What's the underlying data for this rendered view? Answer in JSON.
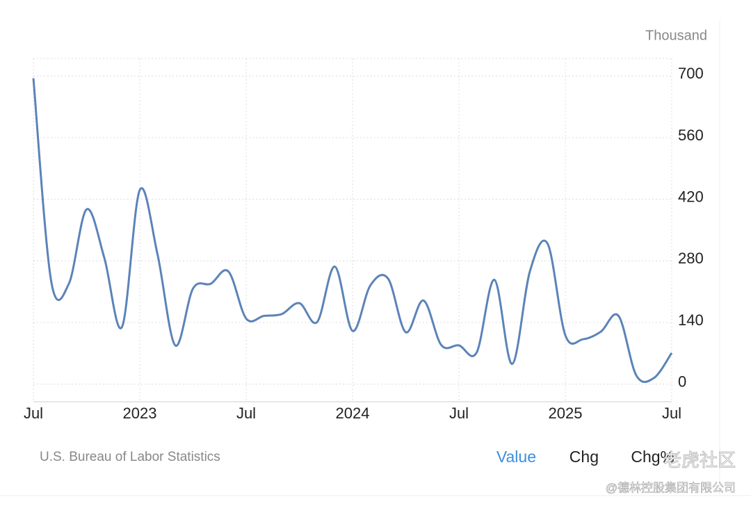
{
  "chart_data": {
    "type": "line",
    "unit": "Thousand",
    "categories": [
      "Jul",
      null,
      null,
      null,
      null,
      null,
      "2023",
      null,
      null,
      null,
      null,
      null,
      "Jul",
      null,
      null,
      null,
      null,
      null,
      "2024",
      null,
      null,
      null,
      null,
      null,
      "Jul",
      null,
      null,
      null,
      null,
      null,
      "2025",
      null,
      null,
      null,
      null,
      null,
      "Jul"
    ],
    "series": [
      {
        "name": "Value",
        "color": "#5b83b8",
        "values": [
          695,
          235,
          228,
          397,
          287,
          130,
          441,
          295,
          88,
          217,
          228,
          256,
          149,
          155,
          159,
          184,
          141,
          267,
          121,
          224,
          240,
          118,
          190,
          89,
          88,
          72,
          237,
          46,
          256,
          319,
          111,
          102,
          119,
          155,
          20,
          14,
          71
        ]
      }
    ],
    "ylim": [
      -40,
      740
    ],
    "yticks": [
      0,
      140,
      280,
      420,
      560,
      700
    ],
    "grid": true
  },
  "footer": {
    "source": "U.S. Bureau of Labor Statistics",
    "tabs": [
      "Value",
      "Chg",
      "Chg%"
    ]
  },
  "watermark": {
    "logo": "老虎社区",
    "handle": "@德林控股集团有限公司"
  }
}
